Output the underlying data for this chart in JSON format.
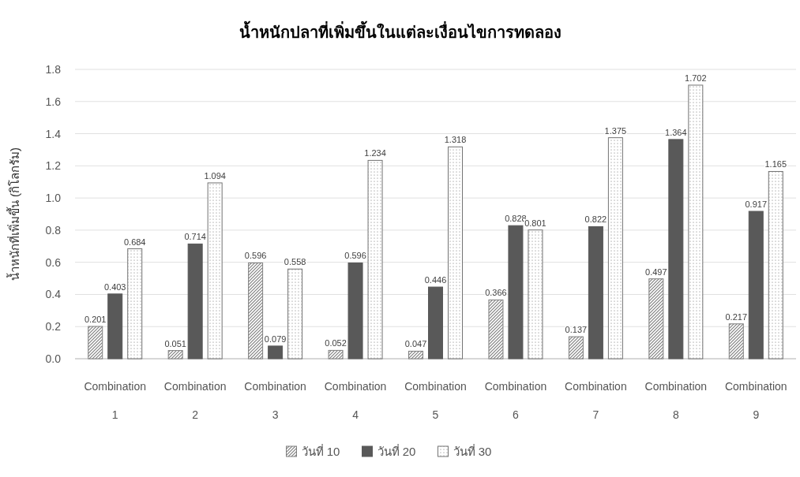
{
  "chart_data": {
    "type": "bar",
    "title": "น้ำหนักปลาที่เพิ่มขึ้นในแต่ละเงื่อนไขการทดลอง",
    "ylabel": "น้ำหนักที่เพิ่มขึ้น (กิโลกรัม)",
    "categories": [
      "Combination 1",
      "Combination 2",
      "Combination 3",
      "Combination 4",
      "Combination 5",
      "Combination 6",
      "Combination 7",
      "Combination 8",
      "Combination 9"
    ],
    "series": [
      {
        "name": "วันที่ 10",
        "color": "#7f7f7f",
        "values": [
          0.201,
          0.051,
          0.596,
          0.052,
          0.047,
          0.366,
          0.137,
          0.497,
          0.217
        ]
      },
      {
        "name": "วันที่ 20",
        "color": "#595959",
        "values": [
          0.403,
          0.714,
          0.079,
          0.596,
          0.446,
          0.828,
          0.822,
          1.364,
          0.917
        ]
      },
      {
        "name": "วันที่ 30",
        "color": "#737373",
        "values": [
          0.684,
          1.094,
          0.558,
          1.234,
          1.318,
          0.801,
          1.375,
          1.702,
          1.165
        ]
      }
    ],
    "ylim": [
      0,
      1.8
    ],
    "yticks": [
      {
        "value": 0,
        "label": "0.0"
      },
      {
        "value": 0.2,
        "label": "0.2"
      },
      {
        "value": 0.4,
        "label": "0.4"
      },
      {
        "value": 0.6,
        "label": "0.6"
      },
      {
        "value": 0.8,
        "label": "0.8"
      },
      {
        "value": 1,
        "label": "1.0"
      },
      {
        "value": 1.2,
        "label": "1.2"
      },
      {
        "value": 1.4,
        "label": "1.4"
      },
      {
        "value": 1.6,
        "label": "1.6"
      },
      {
        "value": 1.8,
        "label": "1.8"
      }
    ],
    "grid": "y",
    "legend": "bottom",
    "data_labels": true
  }
}
